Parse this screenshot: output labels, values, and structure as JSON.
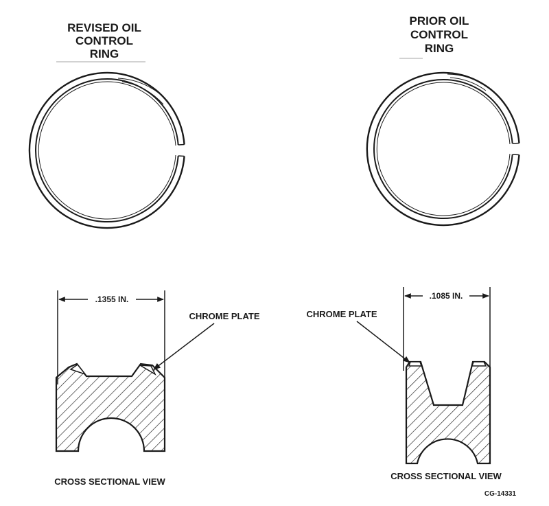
{
  "left_ring": {
    "title_lines": [
      "REVISED OIL",
      "CONTROL",
      "RING"
    ],
    "dimension": ".1355 IN.",
    "callout": "CHROME PLATE",
    "caption": "CROSS SECTIONAL VIEW"
  },
  "right_ring": {
    "title_lines": [
      "PRIOR OIL",
      "CONTROL",
      "RING"
    ],
    "dimension": ".1085 IN.",
    "callout": "CHROME PLATE",
    "caption": "CROSS SECTIONAL VIEW"
  },
  "figure_id": "CG-14331",
  "colors": {
    "ink": "#1a1a1a",
    "background": "#ffffff"
  }
}
